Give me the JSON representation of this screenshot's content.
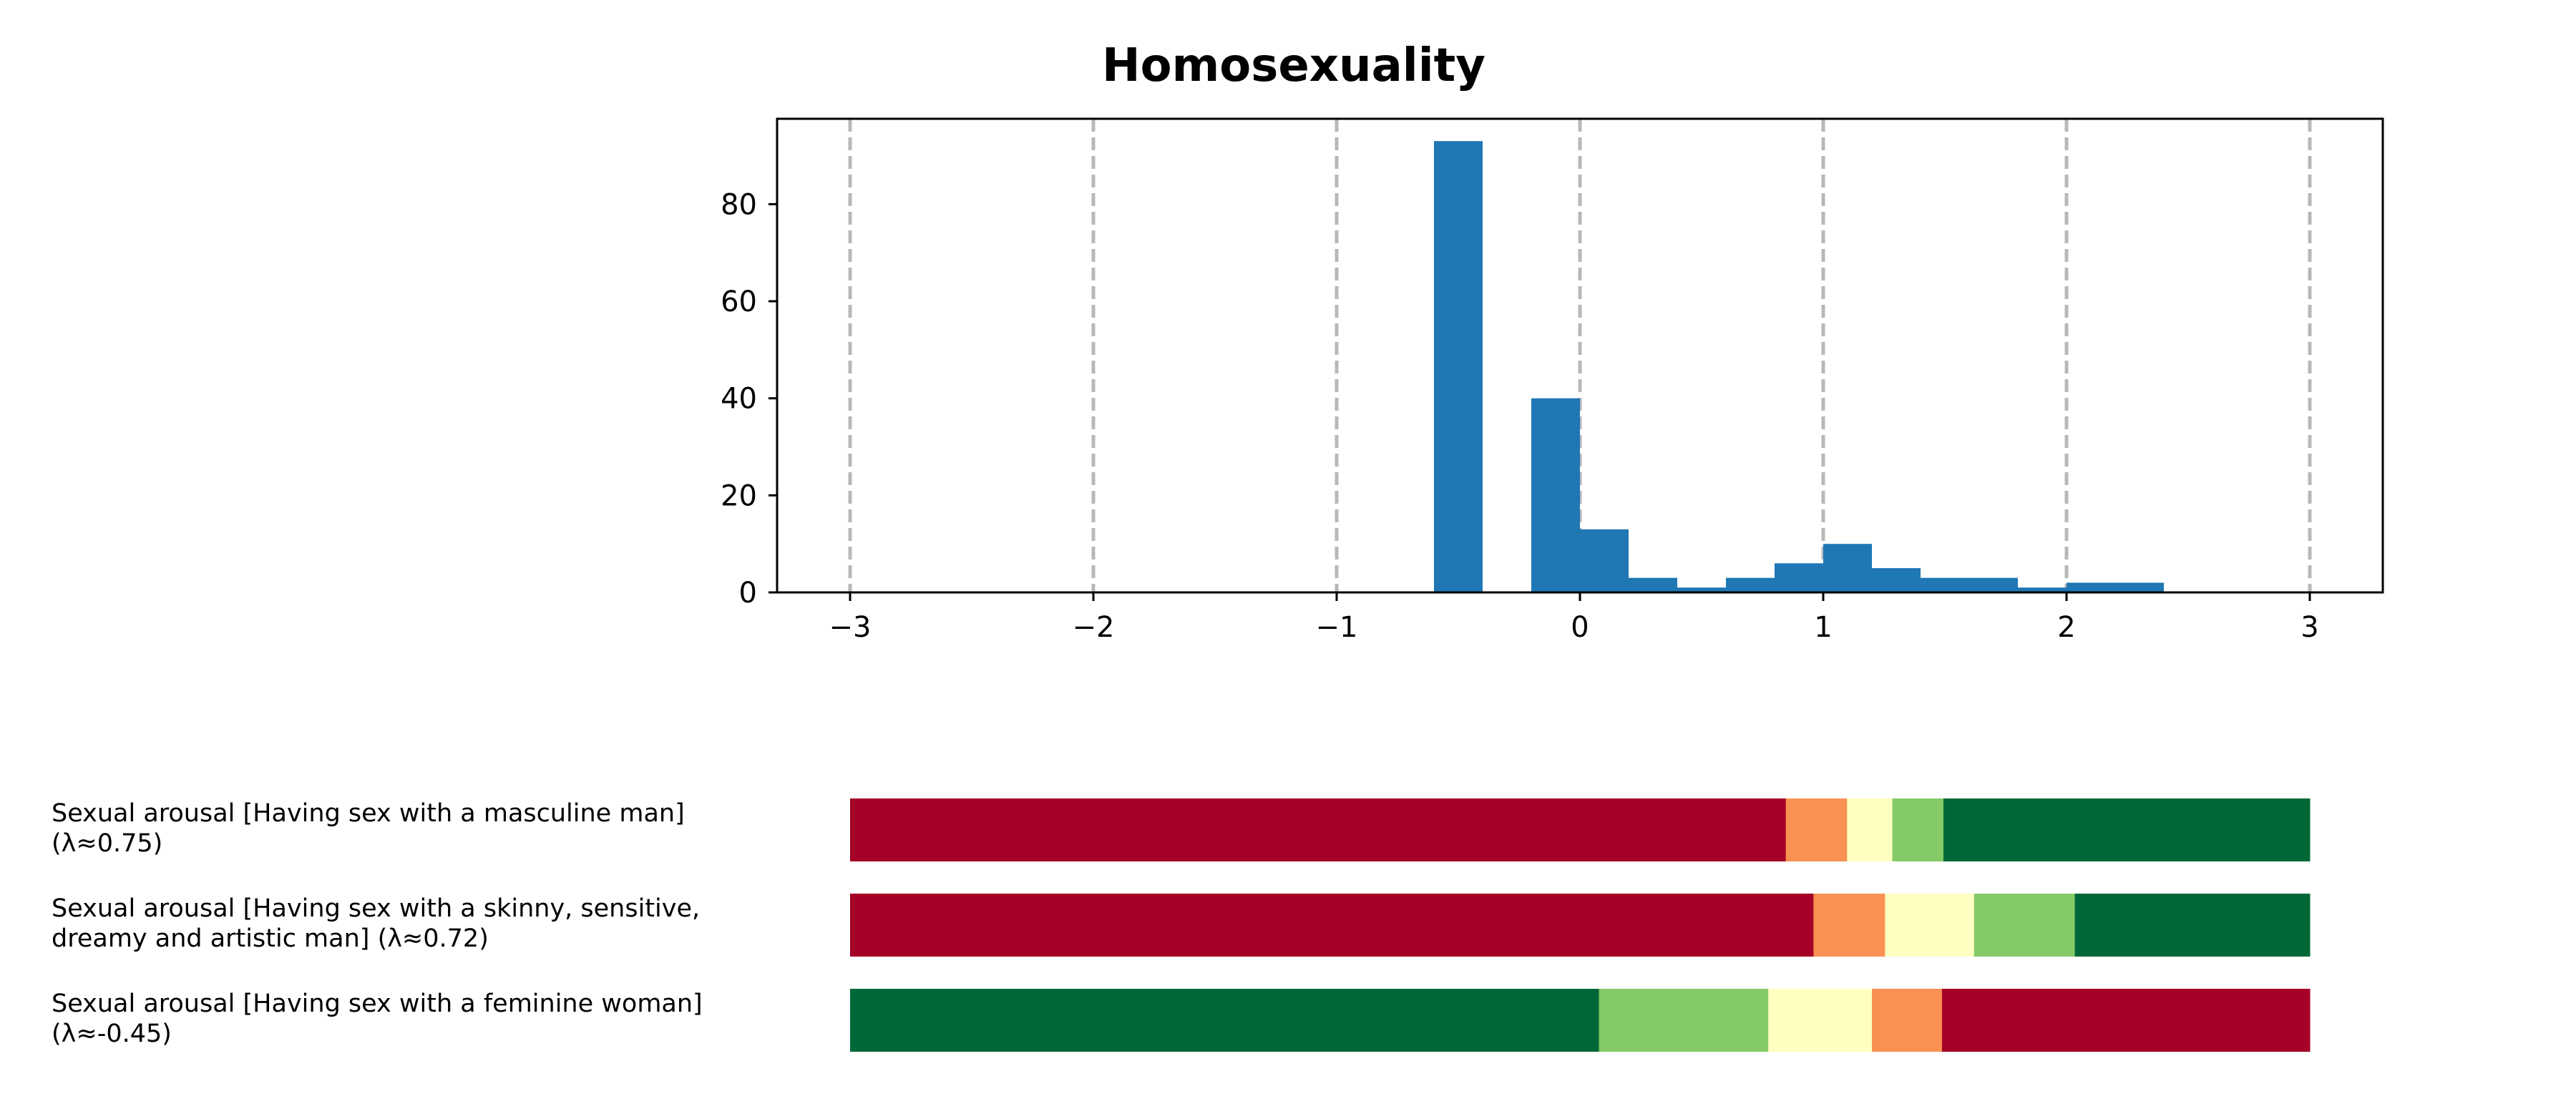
{
  "chart_data": [
    {
      "type": "bar",
      "title": "Homosexuality",
      "xlabel": "",
      "ylabel": "",
      "xlim": [
        -3.3,
        3.3
      ],
      "ylim": [
        0,
        97.6
      ],
      "xticks": [
        -3,
        -2,
        -1,
        0,
        1,
        2,
        3
      ],
      "xtick_labels": [
        "−3",
        "−2",
        "−1",
        "0",
        "1",
        "2",
        "3"
      ],
      "yticks": [
        0,
        20,
        40,
        60,
        80
      ],
      "ytick_labels": [
        "0",
        "20",
        "40",
        "60",
        "80"
      ],
      "grid": "vertical dashed at x ticks",
      "bar_color": "#1f77b4",
      "bars": [
        {
          "x0": -0.6,
          "x1": -0.4,
          "value": 93
        },
        {
          "x0": -0.2,
          "x1": 0.0,
          "value": 40
        },
        {
          "x0": 0.0,
          "x1": 0.2,
          "value": 13
        },
        {
          "x0": 0.2,
          "x1": 0.4,
          "value": 3
        },
        {
          "x0": 0.4,
          "x1": 0.6,
          "value": 1
        },
        {
          "x0": 0.6,
          "x1": 0.8,
          "value": 3
        },
        {
          "x0": 0.8,
          "x1": 1.0,
          "value": 6
        },
        {
          "x0": 1.0,
          "x1": 1.2,
          "value": 10
        },
        {
          "x0": 1.2,
          "x1": 1.4,
          "value": 5
        },
        {
          "x0": 1.4,
          "x1": 1.6,
          "value": 3
        },
        {
          "x0": 1.6,
          "x1": 1.8,
          "value": 3
        },
        {
          "x0": 1.8,
          "x1": 2.0,
          "value": 1
        },
        {
          "x0": 2.0,
          "x1": 2.2,
          "value": 2
        },
        {
          "x0": 2.2,
          "x1": 2.4,
          "value": 2
        }
      ]
    },
    {
      "type": "stacked-bar",
      "categories": [
        [
          "Sexual arousal [Having sex with a masculine man]",
          "(λ≈0.75)"
        ],
        [
          "Sexual arousal [Having sex with a skinny, sensitive,",
          "dreamy and artistic man] (λ≈0.72)"
        ],
        [
          "Sexual arousal [Having sex with a feminine woman]",
          "(λ≈-0.45)"
        ]
      ],
      "segment_fractions": [
        [
          0.641,
          0.042,
          0.031,
          0.035,
          0.251
        ],
        [
          0.66,
          0.049,
          0.061,
          0.069,
          0.161
        ],
        [
          0.513,
          0.116,
          0.071,
          0.048,
          0.252
        ]
      ],
      "segment_colors": [
        [
          "#a50026",
          "#f99153",
          "#feffc0",
          "#84ca66",
          "#006837"
        ],
        [
          "#a50026",
          "#f99153",
          "#feffc0",
          "#84ca66",
          "#006837"
        ],
        [
          "#006837",
          "#84ca66",
          "#feffc0",
          "#f99153",
          "#a50026"
        ]
      ]
    }
  ]
}
